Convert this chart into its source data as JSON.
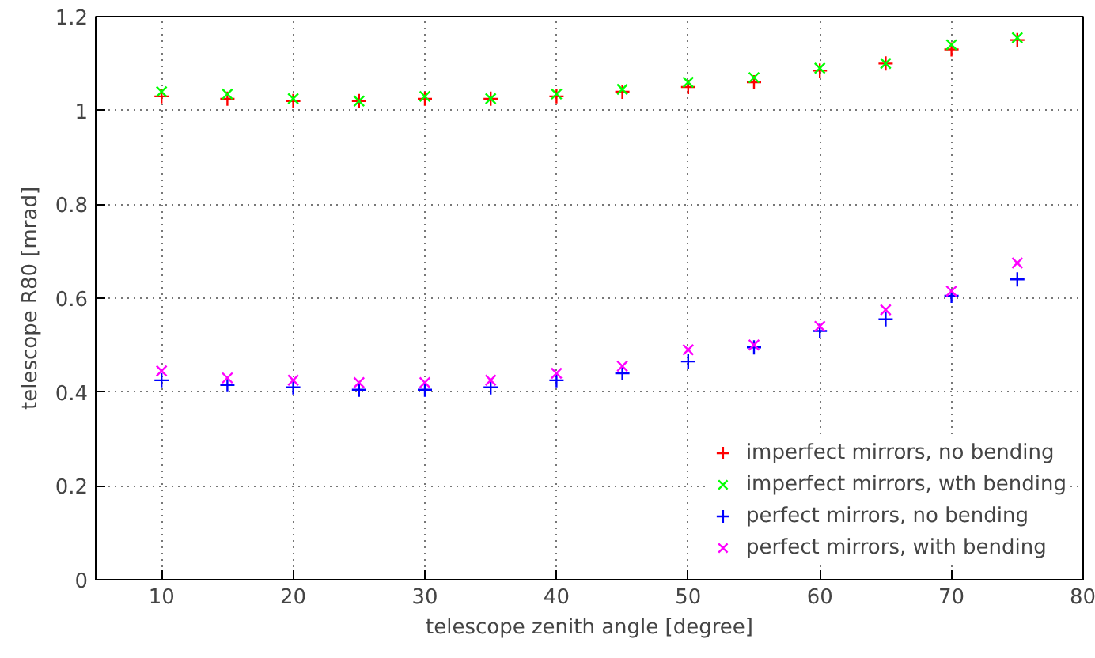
{
  "chart_data": {
    "type": "scatter",
    "xlabel": "telescope zenith angle [degree]",
    "ylabel": "telescope R80 [mrad]",
    "x": [
      10,
      15,
      20,
      25,
      30,
      35,
      40,
      45,
      50,
      55,
      60,
      65,
      70,
      75
    ],
    "series": [
      {
        "name": "imperfect mirrors, no bending",
        "color": "#ff0000",
        "marker": "cross",
        "values": [
          1.03,
          1.025,
          1.02,
          1.02,
          1.025,
          1.025,
          1.03,
          1.04,
          1.05,
          1.06,
          1.085,
          1.1,
          1.13,
          1.15
        ]
      },
      {
        "name": "imperfect mirrors, wth bending",
        "color": "#00ff00",
        "marker": "x",
        "values": [
          1.04,
          1.035,
          1.025,
          1.02,
          1.03,
          1.025,
          1.035,
          1.045,
          1.06,
          1.07,
          1.09,
          1.1,
          1.14,
          1.155
        ]
      },
      {
        "name": "perfect mirrors, no bending",
        "color": "#0000ff",
        "marker": "cross",
        "values": [
          0.425,
          0.415,
          0.41,
          0.405,
          0.405,
          0.41,
          0.425,
          0.44,
          0.465,
          0.495,
          0.53,
          0.555,
          0.605,
          0.64
        ]
      },
      {
        "name": "perfect mirrors, with bending",
        "color": "#ff00ff",
        "marker": "x",
        "values": [
          0.445,
          0.43,
          0.425,
          0.42,
          0.42,
          0.425,
          0.44,
          0.455,
          0.49,
          0.5,
          0.54,
          0.575,
          0.615,
          0.675
        ]
      }
    ],
    "xlim": [
      5,
      80
    ],
    "xticks": [
      10,
      20,
      30,
      40,
      50,
      60,
      70,
      80
    ],
    "ylim": [
      0,
      1.2
    ],
    "yticks": [
      0,
      0.2,
      0.4,
      0.6,
      0.8,
      1,
      1.2
    ],
    "grid": true,
    "legend": "bottom right"
  }
}
